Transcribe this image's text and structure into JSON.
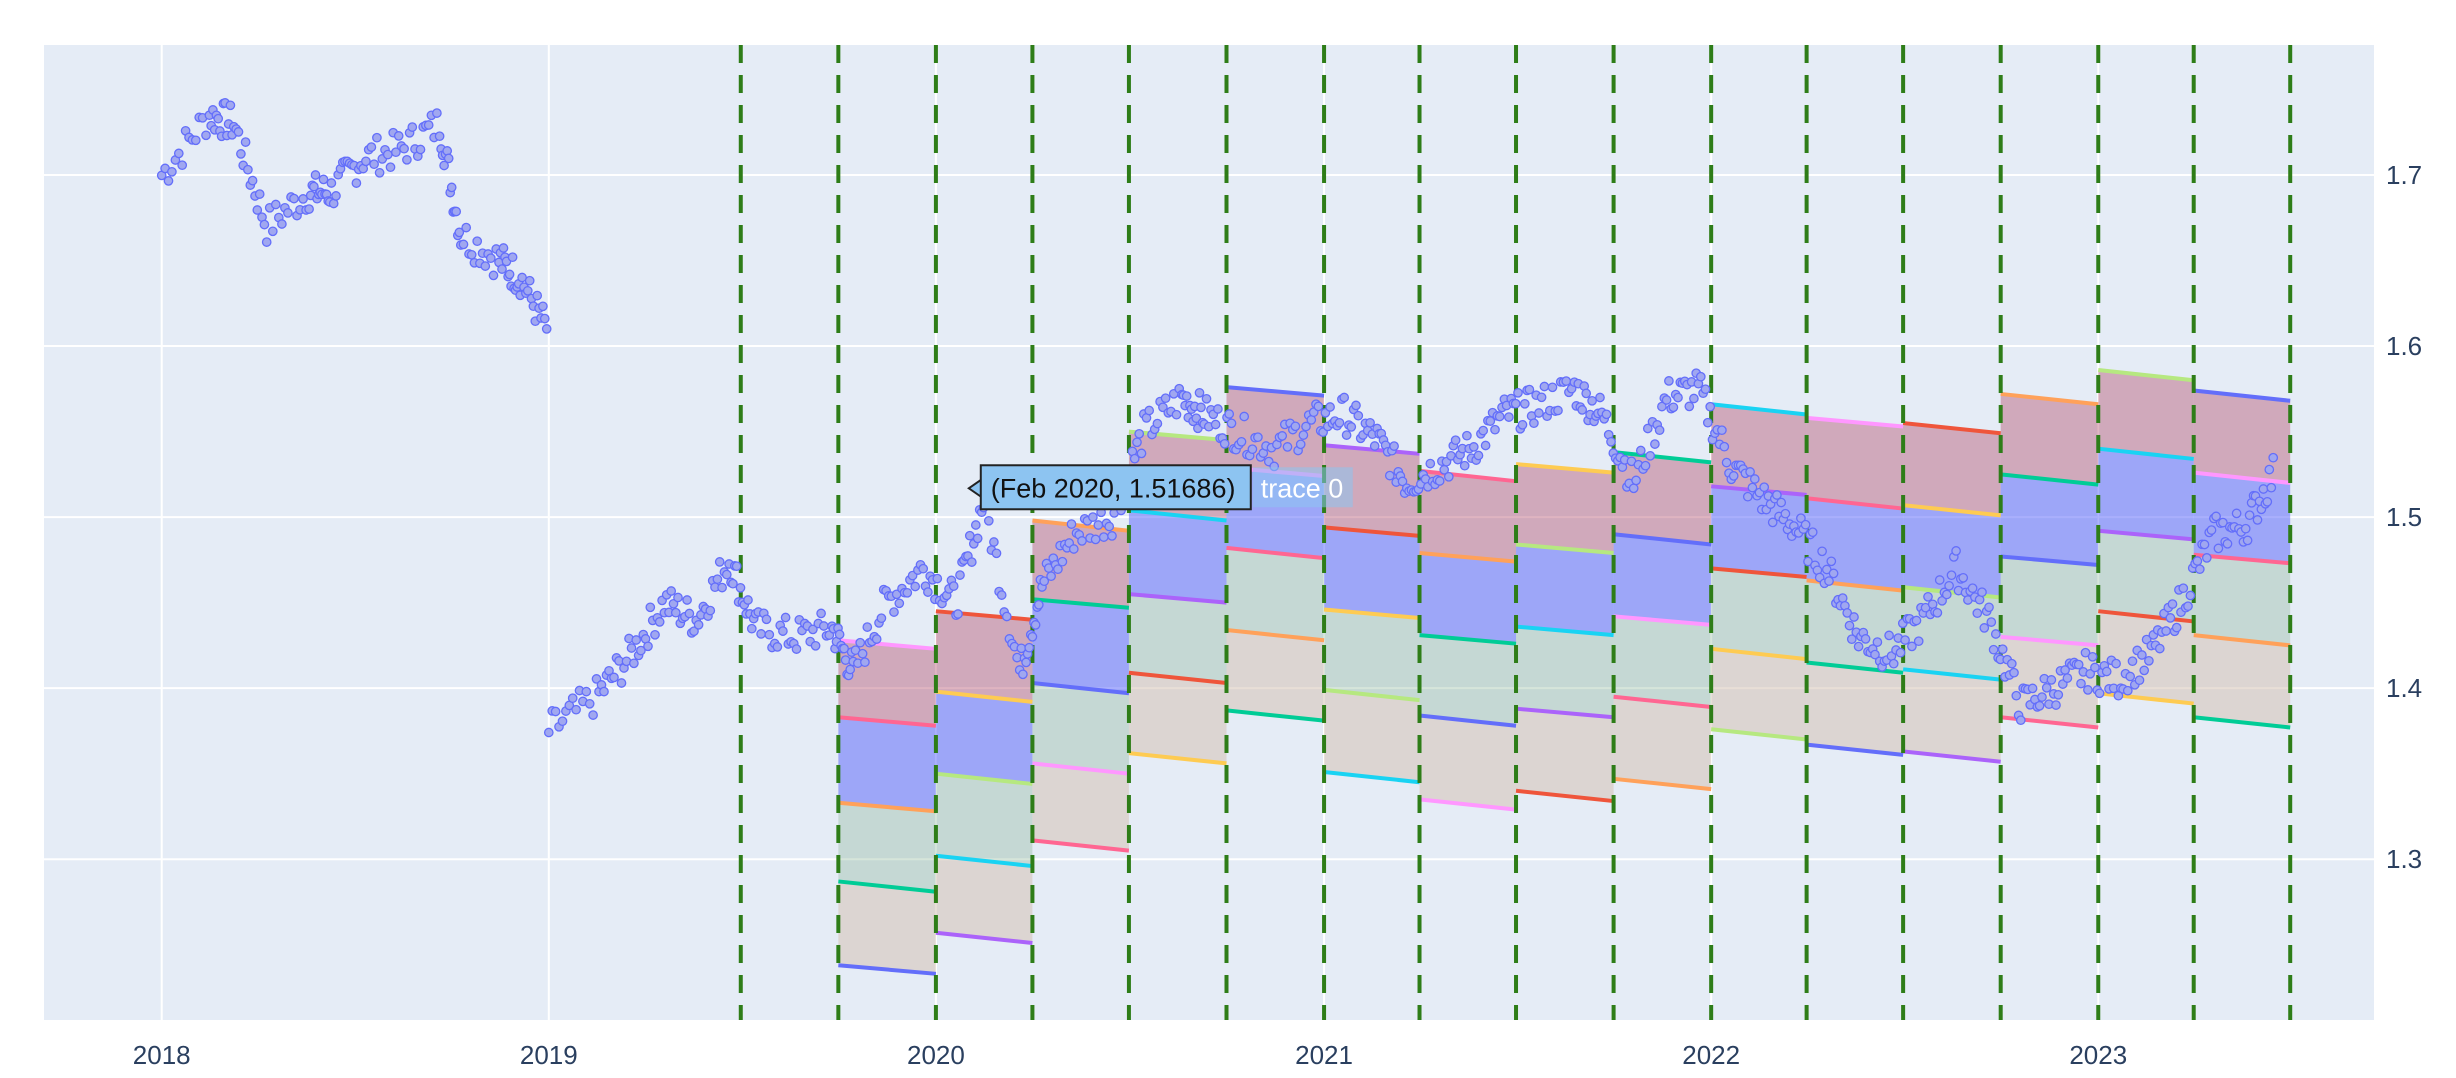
{
  "chart_data": {
    "type": "scatter",
    "title": "",
    "xlabel": "",
    "ylabel": "",
    "x_axis": {
      "type": "date",
      "range": [
        "2017-09-12",
        "2023-09-18"
      ],
      "tick_labels": [
        "2018",
        "2019",
        "2020",
        "2021",
        "2022",
        "2023"
      ],
      "grid": true
    },
    "y_axis": {
      "side": "right",
      "range": [
        1.206,
        1.776
      ],
      "tick_values": [
        1.3,
        1.4,
        1.5,
        1.6,
        1.7
      ],
      "tick_labels": [
        "1.3",
        "1.4",
        "1.5",
        "1.6",
        "1.7"
      ],
      "grid": true
    },
    "background": "#E5ECF6",
    "grid_color": "#ffffff",
    "marker": {
      "fill": "#A0A7F0",
      "outline": "#636EFA"
    },
    "vline_color": "#2E7D18",
    "vlines": [
      "2019-07-01",
      "2019-10-01",
      "2020-01-01",
      "2020-04-01",
      "2020-07-01",
      "2020-10-01",
      "2021-01-01",
      "2021-04-01",
      "2021-07-01",
      "2021-10-01",
      "2022-01-01",
      "2022-04-01",
      "2022-07-01",
      "2022-10-01",
      "2023-01-01",
      "2023-04-01",
      "2023-07-01"
    ],
    "band_fills": [
      "rgba(214,194,180,0.55)",
      "rgba(138,180,150,0.35)",
      "rgba(99,110,250,0.55)",
      "rgba(178,77,104,0.42)"
    ],
    "line_colors": [
      "#636EFA",
      "#EF553B",
      "#00CC96",
      "#AB63FA",
      "#FFA15A",
      "#19D3F3",
      "#FF6692",
      "#B6E880",
      "#FF97FF",
      "#FECB52"
    ],
    "forecast_segments": [
      {
        "start": "2019-10-01",
        "end": "2020-01-01",
        "levels": [
          [
            1.238,
            1.233
          ],
          [
            1.287,
            1.281
          ],
          [
            1.333,
            1.328
          ],
          [
            1.383,
            1.378
          ],
          [
            1.428,
            1.423
          ]
        ]
      },
      {
        "start": "2020-01-01",
        "end": "2020-04-01",
        "levels": [
          [
            1.257,
            1.251
          ],
          [
            1.302,
            1.296
          ],
          [
            1.35,
            1.344
          ],
          [
            1.398,
            1.392
          ],
          [
            1.445,
            1.44
          ]
        ]
      },
      {
        "start": "2020-04-01",
        "end": "2020-07-01",
        "levels": [
          [
            1.311,
            1.305
          ],
          [
            1.356,
            1.35
          ],
          [
            1.403,
            1.397
          ],
          [
            1.452,
            1.447
          ],
          [
            1.498,
            1.492
          ]
        ]
      },
      {
        "start": "2020-07-01",
        "end": "2020-10-01",
        "levels": [
          [
            1.362,
            1.356
          ],
          [
            1.409,
            1.403
          ],
          [
            1.455,
            1.45
          ],
          [
            1.504,
            1.498
          ],
          [
            1.55,
            1.545
          ]
        ]
      },
      {
        "start": "2020-10-01",
        "end": "2021-01-01",
        "levels": [
          [
            1.387,
            1.381
          ],
          [
            1.434,
            1.428
          ],
          [
            1.482,
            1.476
          ],
          [
            1.529,
            1.524
          ],
          [
            1.576,
            1.571
          ]
        ]
      },
      {
        "start": "2021-01-01",
        "end": "2021-04-01",
        "levels": [
          [
            1.351,
            1.345
          ],
          [
            1.399,
            1.393
          ],
          [
            1.446,
            1.441
          ],
          [
            1.494,
            1.489
          ],
          [
            1.542,
            1.537
          ]
        ]
      },
      {
        "start": "2021-04-01",
        "end": "2021-07-01",
        "levels": [
          [
            1.335,
            1.329
          ],
          [
            1.384,
            1.378
          ],
          [
            1.431,
            1.426
          ],
          [
            1.479,
            1.474
          ],
          [
            1.527,
            1.521
          ]
        ]
      },
      {
        "start": "2021-07-01",
        "end": "2021-10-01",
        "levels": [
          [
            1.34,
            1.334
          ],
          [
            1.388,
            1.383
          ],
          [
            1.436,
            1.431
          ],
          [
            1.484,
            1.479
          ],
          [
            1.531,
            1.526
          ]
        ]
      },
      {
        "start": "2021-10-01",
        "end": "2022-01-01",
        "levels": [
          [
            1.347,
            1.341
          ],
          [
            1.395,
            1.389
          ],
          [
            1.442,
            1.437
          ],
          [
            1.49,
            1.484
          ],
          [
            1.538,
            1.532
          ]
        ]
      },
      {
        "start": "2022-01-01",
        "end": "2022-04-01",
        "levels": [
          [
            1.376,
            1.37
          ],
          [
            1.423,
            1.417
          ],
          [
            1.47,
            1.465
          ],
          [
            1.518,
            1.513
          ],
          [
            1.566,
            1.56
          ]
        ]
      },
      {
        "start": "2022-04-01",
        "end": "2022-07-01",
        "levels": [
          [
            1.367,
            1.361
          ],
          [
            1.415,
            1.409
          ],
          [
            1.463,
            1.457
          ],
          [
            1.511,
            1.505
          ],
          [
            1.558,
            1.553
          ]
        ]
      },
      {
        "start": "2022-07-01",
        "end": "2022-10-01",
        "levels": [
          [
            1.363,
            1.357
          ],
          [
            1.411,
            1.405
          ],
          [
            1.459,
            1.453
          ],
          [
            1.507,
            1.501
          ],
          [
            1.555,
            1.549
          ]
        ]
      },
      {
        "start": "2022-10-01",
        "end": "2023-01-01",
        "levels": [
          [
            1.383,
            1.377
          ],
          [
            1.43,
            1.425
          ],
          [
            1.477,
            1.472
          ],
          [
            1.525,
            1.519
          ],
          [
            1.572,
            1.566
          ]
        ]
      },
      {
        "start": "2023-01-01",
        "end": "2023-04-01",
        "levels": [
          [
            1.397,
            1.391
          ],
          [
            1.445,
            1.439
          ],
          [
            1.492,
            1.487
          ],
          [
            1.54,
            1.534
          ],
          [
            1.586,
            1.58
          ]
        ]
      },
      {
        "start": "2023-04-01",
        "end": "2023-07-01",
        "levels": [
          [
            1.383,
            1.377
          ],
          [
            1.431,
            1.425
          ],
          [
            1.478,
            1.473
          ],
          [
            1.526,
            1.52
          ],
          [
            1.574,
            1.568
          ]
        ]
      }
    ],
    "series": [
      {
        "x": [
          "2018-01-01",
          "2018-02-15",
          "2018-03-10",
          "2018-04-10",
          "2018-05-20",
          "2018-06-10",
          "2018-07-10",
          "2018-08-15",
          "2018-09-20",
          "2018-10-10",
          "2018-11-15",
          "2018-12-05",
          "2018-12-30",
          "2019-01-01",
          "2019-02-15",
          "2019-03-20",
          "2019-04-20",
          "2019-05-20",
          "2019-06-20",
          "2019-07-15",
          "2019-08-20",
          "2019-09-25",
          "2019-10-15",
          "2019-11-15",
          "2019-12-20",
          "2020-01-20",
          "2020-02-15",
          "2020-03-20",
          "2020-04-10",
          "2020-05-10",
          "2020-06-15",
          "2020-07-15",
          "2020-08-20",
          "2020-09-10",
          "2020-10-10",
          "2020-11-15",
          "2020-12-20",
          "2021-01-20",
          "2021-02-20",
          "2021-03-20",
          "2021-04-20",
          "2021-05-20",
          "2021-06-20",
          "2021-07-20",
          "2021-08-25",
          "2021-09-20",
          "2021-10-20",
          "2021-11-20",
          "2021-12-20",
          "2022-01-20",
          "2022-02-20",
          "2022-03-20",
          "2022-04-20",
          "2022-05-20",
          "2022-06-20",
          "2022-07-20",
          "2022-08-20",
          "2022-09-20",
          "2022-10-20",
          "2022-11-20",
          "2022-12-20",
          "2023-01-20",
          "2023-02-20",
          "2023-03-20",
          "2023-04-20",
          "2023-05-20",
          "2023-06-15"
        ],
        "y": [
          1.7,
          1.735,
          1.73,
          1.67,
          1.69,
          1.69,
          1.71,
          1.715,
          1.73,
          1.665,
          1.65,
          1.64,
          1.61,
          1.375,
          1.395,
          1.42,
          1.45,
          1.44,
          1.475,
          1.435,
          1.43,
          1.435,
          1.41,
          1.45,
          1.47,
          1.45,
          1.51,
          1.41,
          1.46,
          1.49,
          1.5,
          1.55,
          1.57,
          1.56,
          1.55,
          1.54,
          1.555,
          1.56,
          1.545,
          1.52,
          1.53,
          1.54,
          1.56,
          1.565,
          1.575,
          1.56,
          1.52,
          1.57,
          1.575,
          1.53,
          1.51,
          1.495,
          1.47,
          1.43,
          1.42,
          1.44,
          1.47,
          1.44,
          1.39,
          1.4,
          1.41,
          1.405,
          1.42,
          1.45,
          1.49,
          1.495,
          1.525
        ]
      }
    ],
    "tooltip": {
      "text": "(Feb 2020, 1.51686)",
      "name": "trace 0",
      "x": "2020-02-01",
      "y": 1.51686,
      "color": "#8DC4F1",
      "border": "#222222"
    }
  }
}
